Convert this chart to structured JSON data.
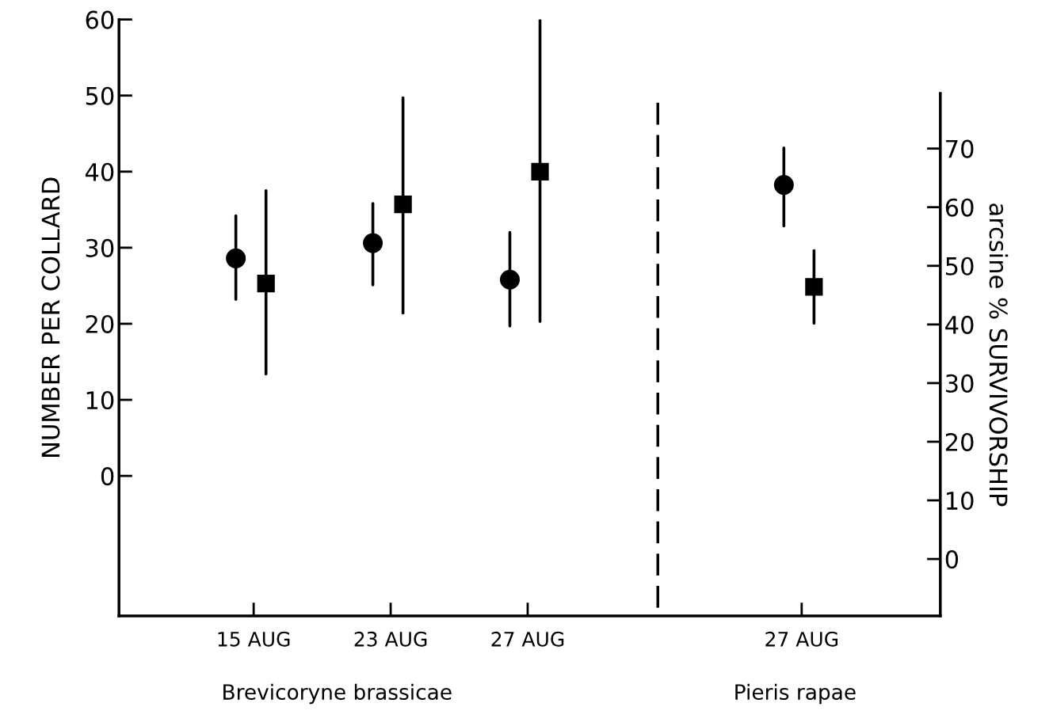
{
  "chart_data": {
    "type": "scatter",
    "ylabel": "NUMBER PER COLLARD",
    "y2label": "arcsine % SURVIVORSHIP",
    "categories": [
      "15 AUG",
      "23 AUG",
      "27 AUG",
      null,
      "27 AUG"
    ],
    "series": [
      {
        "color": "#000000",
        "marker": "circle",
        "values": [
          28.6,
          30.6,
          25.8,
          null,
          null
        ],
        "errors": [
          [
            23.2,
            34.2
          ],
          [
            25.1,
            35.8
          ],
          [
            19.7,
            32.0
          ],
          null,
          null
        ]
      },
      {
        "color": "#000000",
        "marker": "square",
        "values": [
          25.3,
          35.7,
          40.0,
          null,
          null
        ],
        "errors": [
          [
            13.4,
            37.5
          ],
          [
            21.4,
            49.7
          ],
          [
            20.3,
            59.9
          ],
          null,
          null
        ]
      },
      {
        "color": "#000000",
        "marker": "circle",
        "axis": "y2",
        "values": [
          null,
          null,
          null,
          null,
          63.8
        ],
        "errors": [
          null,
          null,
          null,
          null,
          [
            56.8,
            70.1
          ]
        ]
      },
      {
        "color": "#000000",
        "marker": "square",
        "axis": "y2",
        "values": [
          null,
          null,
          null,
          null,
          46.4
        ],
        "errors": [
          null,
          null,
          null,
          null,
          [
            40.2,
            52.6
          ]
        ]
      }
    ],
    "ylim": [
      -18.4,
      60
    ],
    "yticks": [
      0,
      10,
      20,
      30,
      40,
      50,
      60
    ],
    "y2lim": [
      -9.7,
      79.4
    ],
    "y2ticks": [
      0,
      10,
      20,
      30,
      40,
      50,
      60,
      70
    ],
    "annotations": [
      "Brevicoryne brassicae",
      "Pieris rapae"
    ],
    "grid": false,
    "legend": false
  }
}
